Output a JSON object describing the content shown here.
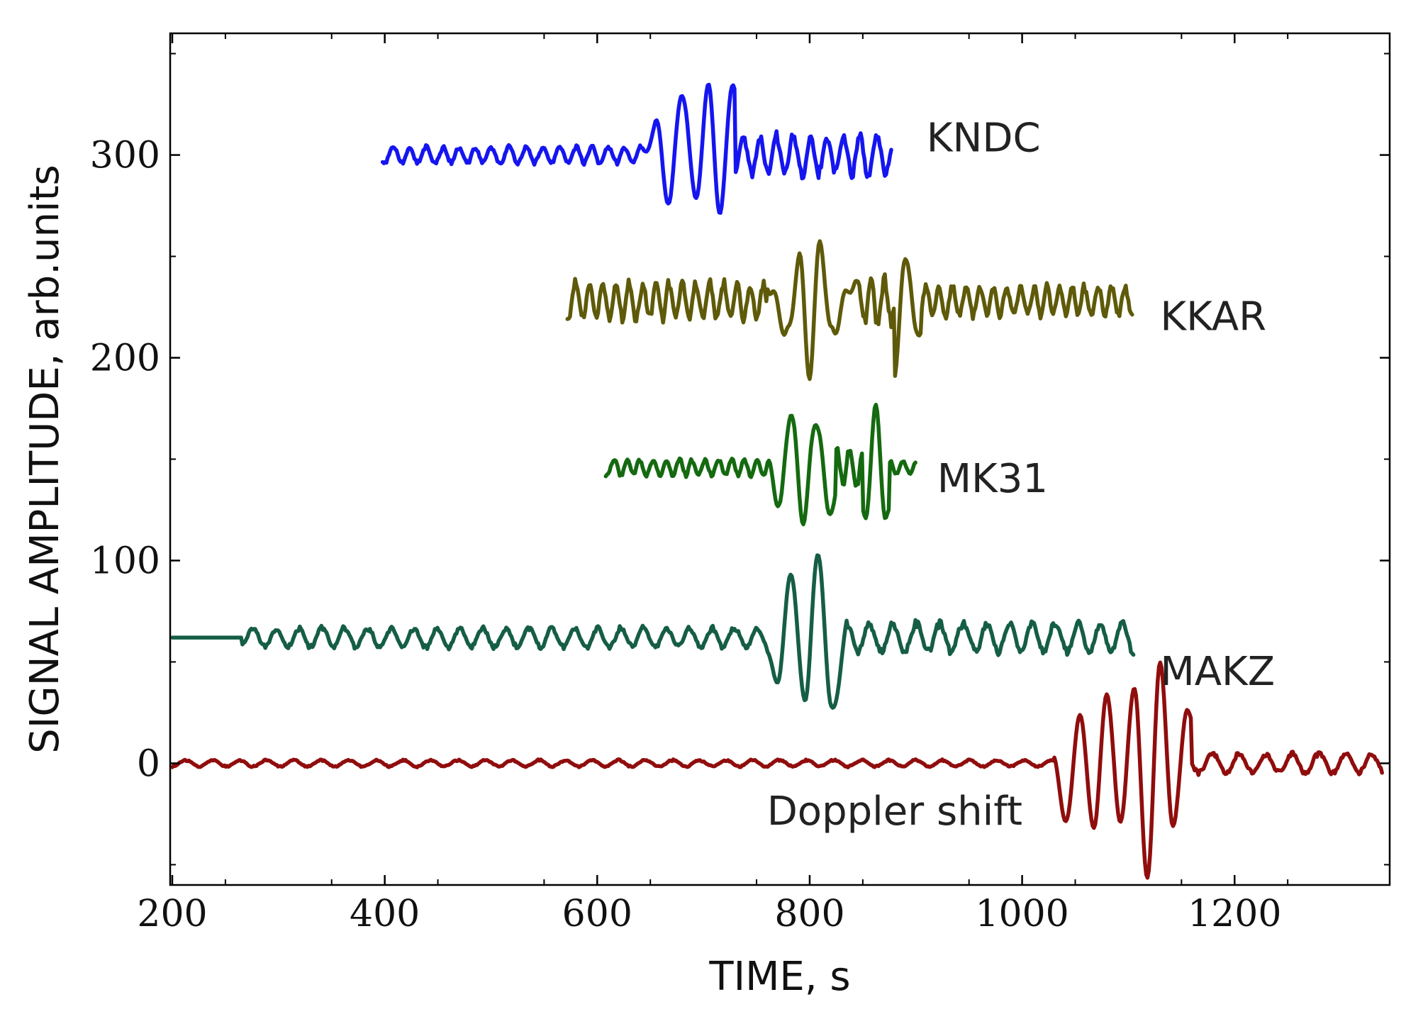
{
  "chart_data": {
    "type": "line",
    "title": "",
    "xlabel": "TIME, s",
    "ylabel": "SIGNAL AMPLITUDE, arb.units",
    "xlim": [
      198,
      1346
    ],
    "ylim": [
      -60,
      360
    ],
    "x_ticks": [
      200,
      400,
      600,
      800,
      1000,
      1200
    ],
    "x_tick_labels": [
      "200",
      "400",
      "600",
      "800",
      "1000",
      "1200"
    ],
    "y_ticks": [
      0,
      100,
      200,
      300
    ],
    "y_tick_labels": [
      "0",
      "100",
      "200",
      "300"
    ],
    "grid": false,
    "series": [
      {
        "name": "KNDC",
        "color": "#1515f0",
        "baseline": 300,
        "label_anchor": [
          910,
          308
        ],
        "bursts": [
          {
            "start": 395,
            "end": 600,
            "amplitude": 5
          },
          {
            "start": 600,
            "end": 645,
            "amplitude": 5
          },
          {
            "start": 645,
            "end": 730,
            "amplitude": 34
          },
          {
            "start": 730,
            "end": 880,
            "amplitude": 12
          }
        ],
        "period": 16,
        "x": [
          398,
          420,
          440,
          460,
          480,
          500,
          520,
          540,
          560,
          580,
          600,
          620,
          640,
          655,
          668,
          680,
          692,
          705,
          716,
          728,
          740,
          760,
          780,
          800,
          820,
          840,
          860,
          878
        ],
        "values": [
          300,
          303,
          298,
          304,
          297,
          306,
          296,
          308,
          297,
          305,
          300,
          302,
          297,
          314,
          278,
          333,
          279,
          331,
          272,
          338,
          287,
          311,
          290,
          309,
          287,
          312,
          289,
          312
        ]
      },
      {
        "name": "KKAR",
        "color": "#5e5a09",
        "baseline": 228,
        "label_anchor": [
          1130,
          220
        ],
        "bursts": [
          {
            "start": 570,
            "end": 760,
            "amplitude": 11
          },
          {
            "start": 760,
            "end": 845,
            "amplitude": 30
          },
          {
            "start": 845,
            "end": 880,
            "amplitude": 14
          },
          {
            "start": 880,
            "end": 905,
            "amplitude": 28
          },
          {
            "start": 905,
            "end": 1105,
            "amplitude": 9
          }
        ],
        "period": 13,
        "x": [
          572,
          600,
          640,
          680,
          720,
          760,
          780,
          790,
          800,
          810,
          820,
          840,
          860,
          880,
          890,
          900,
          940,
          980,
          1020,
          1060,
          1104
        ],
        "values": [
          228,
          234,
          222,
          235,
          221,
          236,
          212,
          250,
          193,
          258,
          212,
          236,
          222,
          190,
          252,
          214,
          235,
          221,
          233,
          224,
          228
        ]
      },
      {
        "name": "MK31",
        "color": "#156a10",
        "baseline": 146,
        "label_anchor": [
          920,
          140
        ],
        "bursts": [
          {
            "start": 605,
            "end": 760,
            "amplitude": 5
          },
          {
            "start": 760,
            "end": 825,
            "amplitude": 28
          },
          {
            "start": 825,
            "end": 850,
            "amplitude": 13
          },
          {
            "start": 850,
            "end": 875,
            "amplitude": 27
          },
          {
            "start": 875,
            "end": 900,
            "amplitude": 4
          }
        ],
        "period": 13,
        "x": [
          608,
          640,
          680,
          720,
          760,
          772,
          782,
          794,
          806,
          818,
          840,
          852,
          862,
          872,
          890,
          900
        ],
        "values": [
          148,
          143,
          149,
          144,
          147,
          128,
          174,
          121,
          170,
          126,
          150,
          120,
          174,
          121,
          144,
          147
        ]
      },
      {
        "name": "MAKZ",
        "color": "#155e45",
        "baseline": 62,
        "label_anchor": [
          1130,
          45
        ],
        "bursts": [
          {
            "start": 265,
            "end": 760,
            "amplitude": 6
          },
          {
            "start": 760,
            "end": 835,
            "amplitude": 42
          },
          {
            "start": 835,
            "end": 1105,
            "amplitude": 9
          }
        ],
        "period": 22,
        "x": [
          200,
          265,
          290,
          310,
          340,
          400,
          500,
          560,
          620,
          700,
          760,
          770,
          782,
          795,
          807,
          820,
          840,
          880,
          940,
          1000,
          1060,
          1105
        ],
        "values": [
          62,
          62,
          56,
          76,
          60,
          64,
          60,
          68,
          58,
          68,
          60,
          35,
          98,
          28,
          104,
          30,
          72,
          52,
          70,
          50,
          66,
          70
        ]
      },
      {
        "name": "Doppler shift",
        "color": "#900d0d",
        "baseline": 0,
        "label_anchor": [
          880,
          -24
        ],
        "bursts": [
          {
            "start": 200,
            "end": 1030,
            "amplitude": 2
          },
          {
            "start": 1030,
            "end": 1160,
            "amplitude": 42
          },
          {
            "start": 1160,
            "end": 1346,
            "amplitude": 6
          }
        ],
        "period": 26,
        "x": [
          200,
          300,
          400,
          500,
          600,
          700,
          800,
          900,
          1000,
          1030,
          1042,
          1055,
          1068,
          1080,
          1093,
          1106,
          1118,
          1130,
          1142,
          1156,
          1180,
          1220,
          1260,
          1300,
          1340
        ],
        "values": [
          3,
          -2,
          3,
          -2,
          3,
          -3,
          4,
          -2,
          3,
          0,
          -25,
          20,
          -28,
          30,
          -25,
          33,
          -52,
          45,
          -26,
          22,
          -5,
          6,
          -4,
          8,
          4
        ]
      }
    ]
  }
}
